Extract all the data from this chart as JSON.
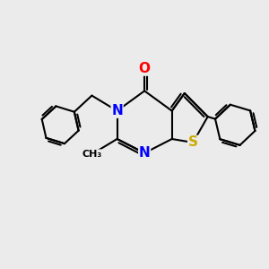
{
  "bg_color": "#ebebeb",
  "bond_color": "#000000",
  "bond_width": 1.5,
  "atom_colors": {
    "N": "#0000ff",
    "O": "#ff0000",
    "S": "#ccaa00",
    "C": "#000000"
  },
  "figsize": [
    3.0,
    3.0
  ],
  "dpi": 100,
  "xlim": [
    0,
    10
  ],
  "ylim": [
    0,
    10
  ]
}
